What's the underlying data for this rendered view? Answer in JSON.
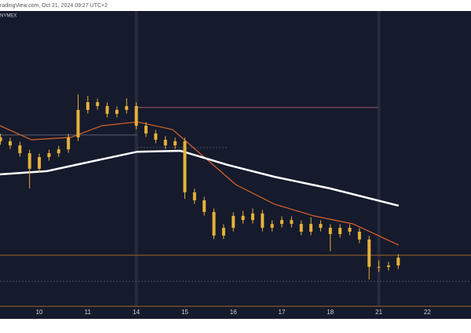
{
  "chart_data": {
    "type": "candlestick",
    "watermark": "radingView.com, Oct 21, 2024 09:27 UTC+2",
    "exchange": "NYMEX",
    "candle_color": "#e5b13a",
    "background": "#151a2c",
    "xlim": [
      -0.81,
      8.9
    ],
    "ylim": [
      0,
      100
    ],
    "xticks": [
      {
        "value": 0,
        "label": "10"
      },
      {
        "value": 1,
        "label": "11"
      },
      {
        "value": 2,
        "label": "14"
      },
      {
        "value": 3,
        "label": "15"
      },
      {
        "value": 4,
        "label": "16"
      },
      {
        "value": 5,
        "label": "17"
      },
      {
        "value": 6,
        "label": "18"
      },
      {
        "value": 7,
        "label": "21"
      },
      {
        "value": 8,
        "label": "22"
      }
    ],
    "session_breaks": [
      2,
      7
    ],
    "x": [
      -0.8,
      -0.6,
      -0.4,
      -0.2,
      0,
      0.2,
      0.4,
      0.6,
      0.8,
      1,
      1.2,
      1.4,
      1.6,
      1.8,
      2,
      2.2,
      2.4,
      2.6,
      2.8,
      3,
      3.2,
      3.4,
      3.6,
      3.8,
      4,
      4.2,
      4.4,
      4.6,
      4.8,
      5,
      5.2,
      5.4,
      5.6,
      5.8,
      6,
      6.2,
      6.4,
      6.6,
      6.8,
      7,
      7.2,
      7.4
    ],
    "open": [
      56.6,
      55.3,
      53.9,
      51.3,
      46.1,
      50.0,
      51.3,
      52.6,
      56.6,
      65.8,
      68.4,
      67.1,
      64.5,
      65.8,
      67.1,
      60.5,
      57.9,
      55.8,
      53.9,
      55.3,
      38.2,
      35.5,
      31.6,
      23.7,
      26.3,
      30.3,
      28.9,
      31.1,
      26.3,
      27.6,
      28.9,
      27.6,
      25.0,
      27.6,
      26.3,
      24.2,
      26.3,
      25.0,
      22.4,
      13.2,
      13.2,
      13.7
    ],
    "high": [
      57.8,
      56.5,
      55.1,
      52.5,
      51.2,
      52.5,
      53.8,
      57.8,
      71.0,
      70.5,
      69.6,
      68.3,
      67.0,
      69.7,
      68.3,
      61.7,
      59.1,
      57.0,
      56.5,
      56.5,
      39.4,
      36.7,
      32.8,
      27.5,
      31.5,
      32.0,
      32.8,
      32.3,
      28.8,
      30.1,
      30.1,
      28.8,
      29.8,
      28.8,
      27.5,
      27.5,
      27.5,
      26.2,
      23.6,
      15.4,
      14.9,
      17.5
    ],
    "low": [
      54.1,
      52.7,
      50.1,
      39.5,
      44.9,
      48.8,
      50.1,
      51.4,
      55.4,
      64.6,
      65.9,
      63.3,
      63.3,
      64.6,
      59.3,
      56.7,
      54.6,
      52.7,
      52.7,
      36.0,
      34.3,
      30.4,
      22.5,
      22.5,
      25.1,
      27.7,
      27.7,
      25.1,
      25.1,
      26.4,
      26.4,
      23.8,
      23.8,
      25.1,
      18.5,
      23.0,
      23.8,
      21.2,
      9.0,
      11.5,
      12.0,
      12.5
    ],
    "close": [
      55.3,
      53.9,
      51.3,
      46.1,
      50.0,
      51.3,
      52.6,
      56.6,
      65.8,
      68.4,
      67.1,
      64.5,
      65.8,
      67.1,
      60.5,
      57.9,
      55.8,
      53.9,
      55.3,
      38.2,
      35.5,
      31.6,
      23.7,
      26.3,
      30.3,
      28.9,
      31.1,
      26.3,
      27.6,
      28.9,
      27.6,
      25.0,
      27.6,
      26.3,
      24.2,
      26.3,
      25.0,
      22.4,
      13.2,
      13.2,
      13.7,
      16.3
    ],
    "ma_lines": [
      {
        "color": "#d9632a",
        "width": 1.2,
        "x": [
          -0.81,
          -0.16,
          0.65,
          1.29,
          2.02,
          2.75,
          3.4,
          4.05,
          4.85,
          5.66,
          6.47,
          7.41
        ],
        "values": [
          60.5,
          55.8,
          56.6,
          60.5,
          61.8,
          59.2,
          50.0,
          40.8,
          34.2,
          30.3,
          27.6,
          20.5
        ]
      },
      {
        "color": "#ffffff",
        "width": 2.5,
        "x": [
          -0.81,
          0.16,
          1.13,
          2.02,
          2.91,
          3.88,
          4.85,
          5.99,
          7.41
        ],
        "values": [
          44.2,
          45.3,
          48.7,
          51.8,
          52.1,
          47.4,
          43.4,
          39.5,
          33.7
        ]
      }
    ],
    "levels": [
      {
        "value": 66.6,
        "color": "#9c5a6a",
        "dash": false,
        "x": [
          2.02,
          6.99
        ]
      },
      {
        "value": 17.1,
        "color": "#a0662a",
        "dash": false,
        "x": [
          -0.81,
          8.9
        ]
      },
      {
        "value": 8.4,
        "color": "#4a4f62",
        "dash": true,
        "x": [
          -0.81,
          8.9
        ]
      },
      {
        "value": 57.4,
        "color": "#5a5f70",
        "dash": false,
        "x": [
          -0.81,
          2.02
        ]
      },
      {
        "value": 53.2,
        "color": "#4a4f62",
        "dash": true,
        "x": [
          2.02,
          3.9
        ]
      }
    ]
  }
}
